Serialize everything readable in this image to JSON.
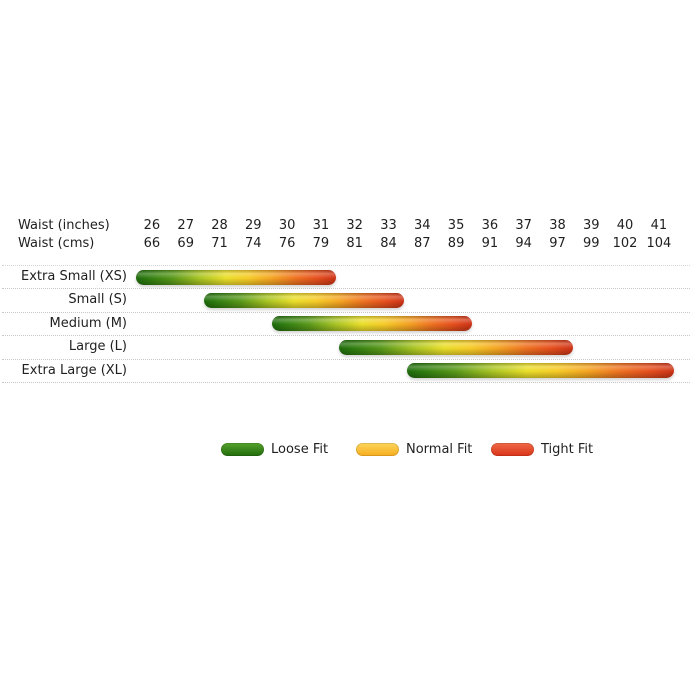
{
  "header": {
    "inches_label": "Waist (inches)",
    "cms_label": "Waist (cms)",
    "inches": [
      "26",
      "27",
      "28",
      "29",
      "30",
      "31",
      "32",
      "33",
      "34",
      "35",
      "36",
      "37",
      "38",
      "39",
      "40",
      "41"
    ],
    "cms": [
      "66",
      "69",
      "71",
      "74",
      "76",
      "79",
      "81",
      "84",
      "87",
      "89",
      "91",
      "94",
      "97",
      "99",
      "102",
      "104"
    ]
  },
  "sizes": [
    {
      "label": "Extra Small (XS)",
      "start_inch": 26,
      "end_inch": 31,
      "start_cm": 66,
      "end_cm": 79
    },
    {
      "label": "Small (S)",
      "start_inch": 28,
      "end_inch": 33,
      "start_cm": 71,
      "end_cm": 84
    },
    {
      "label": "Medium (M)",
      "start_inch": 30,
      "end_inch": 35,
      "start_cm": 76,
      "end_cm": 89
    },
    {
      "label": "Large (L)",
      "start_inch": 32,
      "end_inch": 38,
      "start_cm": 81,
      "end_cm": 97
    },
    {
      "label": "Extra Large (XL)",
      "start_inch": 34,
      "end_inch": 41,
      "start_cm": 87,
      "end_cm": 104
    }
  ],
  "legend": [
    {
      "label": "Loose Fit",
      "color": "#2e7d12",
      "color_top": "#56a22c",
      "color_bottom": "#226c0c"
    },
    {
      "label": "Normal Fit",
      "color": "#fbc337",
      "color_top": "#fdd65c",
      "color_bottom": "#f6ac1e"
    },
    {
      "label": "Tight Fit",
      "color": "#e2422a",
      "color_top": "#ef6a47",
      "color_bottom": "#d93318"
    }
  ],
  "colors": {
    "background": "#ffffff",
    "text": "#1f1f1f",
    "dotted_separator": "#c7c7c7",
    "bar_green": "#1f6b0c",
    "bar_yellow": "#eade2a",
    "bar_red": "#cc3317"
  },
  "chart_data": {
    "type": "bar",
    "subtype": "horizontal-range",
    "orientation": "horizontal",
    "categories": [
      "Extra Small (XS)",
      "Small (S)",
      "Medium (M)",
      "Large (L)",
      "Extra Large (XL)"
    ],
    "series": [
      {
        "name": "Waist (inches)",
        "ranges": [
          [
            26,
            31
          ],
          [
            28,
            33
          ],
          [
            30,
            35
          ],
          [
            32,
            38
          ],
          [
            34,
            41
          ]
        ]
      },
      {
        "name": "Waist (cms)",
        "ranges": [
          [
            66,
            79
          ],
          [
            71,
            84
          ],
          [
            76,
            89
          ],
          [
            81,
            97
          ],
          [
            87,
            104
          ]
        ]
      }
    ],
    "x_axis": {
      "rows": [
        {
          "label": "Waist (inches)",
          "ticks": [
            26,
            27,
            28,
            29,
            30,
            31,
            32,
            33,
            34,
            35,
            36,
            37,
            38,
            39,
            40,
            41
          ]
        },
        {
          "label": "Waist (cms)",
          "ticks": [
            66,
            69,
            71,
            74,
            76,
            79,
            81,
            84,
            87,
            89,
            91,
            94,
            97,
            99,
            102,
            104
          ]
        }
      ],
      "xlim": [
        25.5,
        41.5
      ],
      "position": "top"
    },
    "bar_gradient": [
      "#1f6b0c",
      "#eade2a",
      "#cc3317"
    ],
    "gradient_meaning": "green=Loose Fit at small end, yellow=Normal Fit in middle, red=Tight Fit at large end",
    "grid": "dotted horizontal row separators",
    "legend": [
      "Loose Fit",
      "Normal Fit",
      "Tight Fit"
    ],
    "legend_position": "bottom-center",
    "title": ""
  }
}
